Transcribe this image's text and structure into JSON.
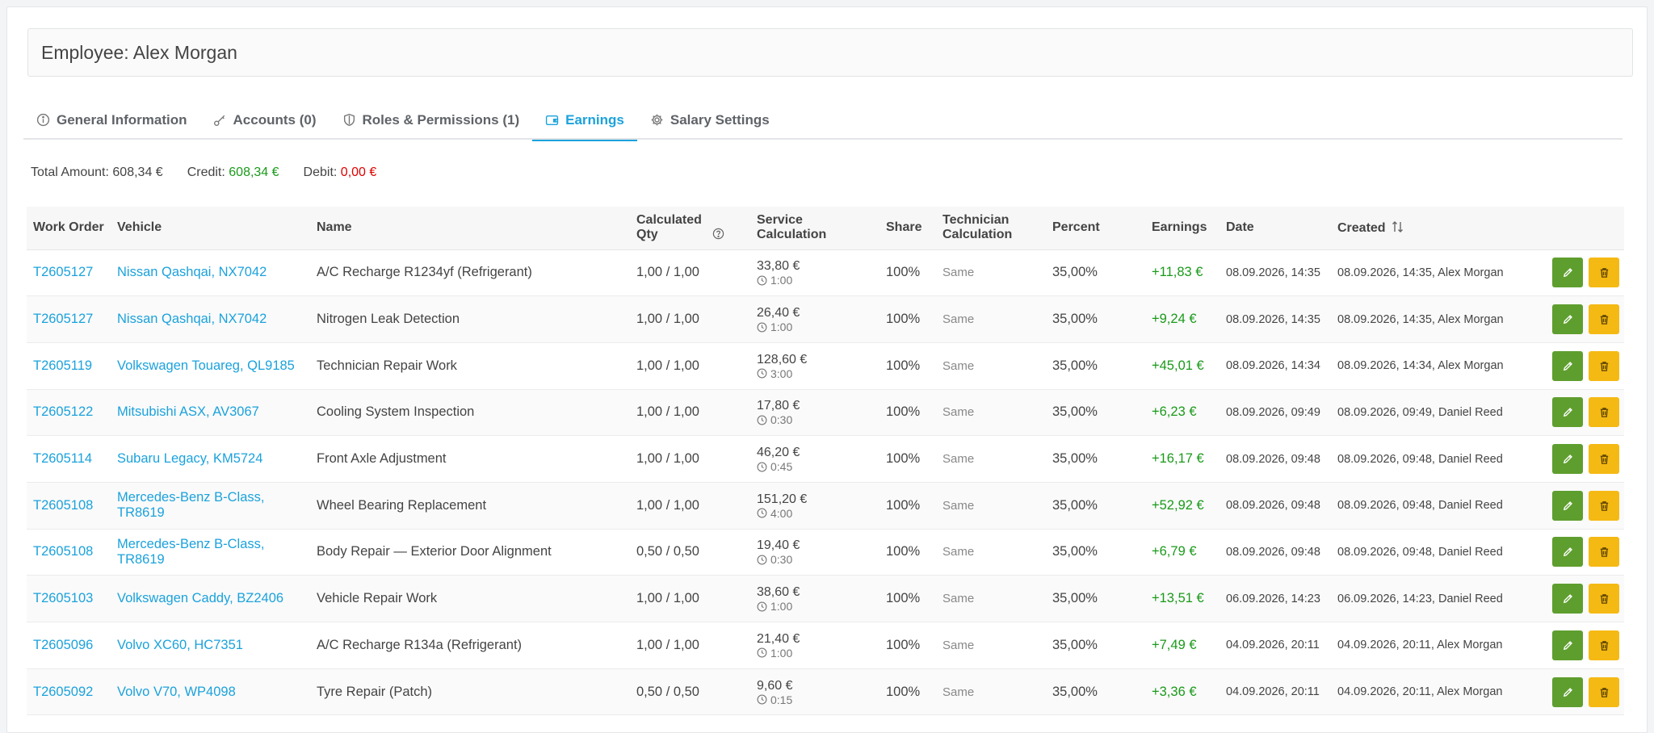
{
  "employee": {
    "title": "Employee: Alex Morgan"
  },
  "tabs": [
    {
      "label": "General Information",
      "icon": "info-icon"
    },
    {
      "label": "Accounts (0)",
      "icon": "key-icon"
    },
    {
      "label": "Roles & Permissions (1)",
      "icon": "shield-icon"
    },
    {
      "label": "Earnings",
      "icon": "wallet-icon",
      "active": true
    },
    {
      "label": "Salary Settings",
      "icon": "gear-icon"
    }
  ],
  "totals": {
    "total_label": "Total Amount:",
    "total_value": "608,34 €",
    "credit_label": "Credit:",
    "credit_value": "608,34 €",
    "debit_label": "Debit:",
    "debit_value": "0,00 €"
  },
  "columns": {
    "work_order": "Work Order",
    "vehicle": "Vehicle",
    "name": "Name",
    "calc_qty": "Calculated Qty",
    "service_calc": "Service Calculation",
    "share": "Share",
    "tech_calc": "Technician Calculation",
    "percent": "Percent",
    "earnings": "Earnings",
    "date": "Date",
    "created": "Created"
  },
  "rows": [
    {
      "wo": "T2605127",
      "vehicle": "Nissan Qashqai, NX7042",
      "name": "A/C Recharge R1234yf (Refrigerant)",
      "qty": "1,00 / 1,00",
      "price": "33,80 €",
      "time": "1:00",
      "share": "100%",
      "tech": "Same",
      "percent": "35,00%",
      "earn": "+11,83 €",
      "date": "08.09.2026, 14:35",
      "created": "08.09.2026, 14:35, Alex Morgan"
    },
    {
      "wo": "T2605127",
      "vehicle": "Nissan Qashqai, NX7042",
      "name": "Nitrogen Leak Detection",
      "qty": "1,00 / 1,00",
      "price": "26,40 €",
      "time": "1:00",
      "share": "100%",
      "tech": "Same",
      "percent": "35,00%",
      "earn": "+9,24 €",
      "date": "08.09.2026, 14:35",
      "created": "08.09.2026, 14:35, Alex Morgan"
    },
    {
      "wo": "T2605119",
      "vehicle": "Volkswagen Touareg, QL9185",
      "name": "Technician Repair Work",
      "qty": "1,00 / 1,00",
      "price": "128,60 €",
      "time": "3:00",
      "share": "100%",
      "tech": "Same",
      "percent": "35,00%",
      "earn": "+45,01 €",
      "date": "08.09.2026, 14:34",
      "created": "08.09.2026, 14:34, Alex Morgan"
    },
    {
      "wo": "T2605122",
      "vehicle": "Mitsubishi ASX, AV3067",
      "name": "Cooling System Inspection",
      "qty": "1,00 / 1,00",
      "price": "17,80 €",
      "time": "0:30",
      "share": "100%",
      "tech": "Same",
      "percent": "35,00%",
      "earn": "+6,23 €",
      "date": "08.09.2026, 09:49",
      "created": "08.09.2026, 09:49, Daniel Reed"
    },
    {
      "wo": "T2605114",
      "vehicle": "Subaru Legacy, KM5724",
      "name": "Front Axle Adjustment",
      "qty": "1,00 / 1,00",
      "price": "46,20 €",
      "time": "0:45",
      "share": "100%",
      "tech": "Same",
      "percent": "35,00%",
      "earn": "+16,17 €",
      "date": "08.09.2026, 09:48",
      "created": "08.09.2026, 09:48, Daniel Reed"
    },
    {
      "wo": "T2605108",
      "vehicle": "Mercedes-Benz B-Class, TR8619",
      "name": "Wheel Bearing Replacement",
      "qty": "1,00 / 1,00",
      "price": "151,20 €",
      "time": "4:00",
      "share": "100%",
      "tech": "Same",
      "percent": "35,00%",
      "earn": "+52,92 €",
      "date": "08.09.2026, 09:48",
      "created": "08.09.2026, 09:48, Daniel Reed"
    },
    {
      "wo": "T2605108",
      "vehicle": "Mercedes-Benz B-Class, TR8619",
      "name": "Body Repair — Exterior Door Alignment",
      "qty": "0,50 / 0,50",
      "price": "19,40 €",
      "time": "0:30",
      "share": "100%",
      "tech": "Same",
      "percent": "35,00%",
      "earn": "+6,79 €",
      "date": "08.09.2026, 09:48",
      "created": "08.09.2026, 09:48, Daniel Reed"
    },
    {
      "wo": "T2605103",
      "vehicle": "Volkswagen Caddy, BZ2406",
      "name": "Vehicle Repair Work",
      "qty": "1,00 / 1,00",
      "price": "38,60 €",
      "time": "1:00",
      "share": "100%",
      "tech": "Same",
      "percent": "35,00%",
      "earn": "+13,51 €",
      "date": "06.09.2026, 14:23",
      "created": "06.09.2026, 14:23, Daniel Reed"
    },
    {
      "wo": "T2605096",
      "vehicle": "Volvo XC60, HC7351",
      "name": "A/C Recharge R134a (Refrigerant)",
      "qty": "1,00 / 1,00",
      "price": "21,40 €",
      "time": "1:00",
      "share": "100%",
      "tech": "Same",
      "percent": "35,00%",
      "earn": "+7,49 €",
      "date": "04.09.2026, 20:11",
      "created": "04.09.2026, 20:11, Alex Morgan"
    },
    {
      "wo": "T2605092",
      "vehicle": "Volvo V70, WP4098",
      "name": "Tyre Repair (Patch)",
      "qty": "0,50 / 0,50",
      "price": "9,60 €",
      "time": "0:15",
      "share": "100%",
      "tech": "Same",
      "percent": "35,00%",
      "earn": "+3,36 €",
      "date": "04.09.2026, 20:11",
      "created": "04.09.2026, 20:11, Alex Morgan"
    }
  ],
  "colors": {
    "accent": "#1ba2dc",
    "credit": "#1a9a1a",
    "debit": "#e00000",
    "edit": "#5e9e2e",
    "delete": "#f5b914"
  }
}
